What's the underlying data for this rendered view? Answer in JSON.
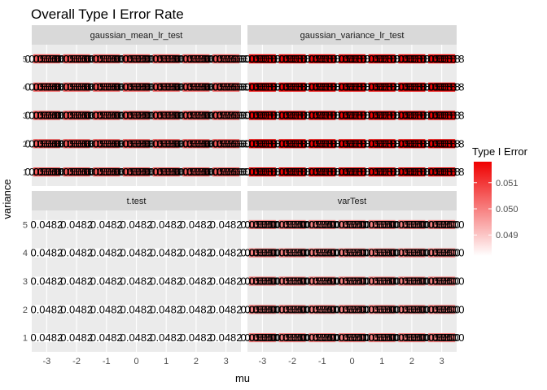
{
  "chart_data": {
    "type": "heatmap",
    "title": "Overall Type I Error Rate",
    "xlabel": "mu",
    "ylabel": "variance",
    "x_categories": [
      "-3",
      "-2",
      "-1",
      "0",
      "1",
      "2",
      "3"
    ],
    "y_categories": [
      "1",
      "2",
      "3",
      "4",
      "5"
    ],
    "legend": {
      "title": "Type I Error",
      "placement": "right",
      "range": [
        0.0482,
        0.0518
      ],
      "ticks": [
        0.049,
        0.05,
        0.051
      ],
      "tick_labels": [
        "0.049",
        "0.050",
        "0.051"
      ],
      "color_low": "#ffffff",
      "color_high": "#ef0000"
    },
    "grid": true,
    "panels": [
      {
        "name": "gaussian_mean_lr_test",
        "tile_value": 0.0506,
        "label_text": "0.0506",
        "label_overplotted": true
      },
      {
        "name": "gaussian_variance_lr_test",
        "tile_value": 0.0518,
        "label_text": "0.0518",
        "label_overplotted": true
      },
      {
        "name": "t.test",
        "tile_value": 0.0482,
        "label_text": "0.0482",
        "label_overplotted": false
      },
      {
        "name": "varTest",
        "tile_value": 0.05,
        "label_text": "0.0500",
        "label_overplotted": true
      }
    ]
  },
  "colors": {
    "panel_background": "#ebebeb",
    "strip_background": "#d9d9d9",
    "gridline": "#ffffff"
  }
}
